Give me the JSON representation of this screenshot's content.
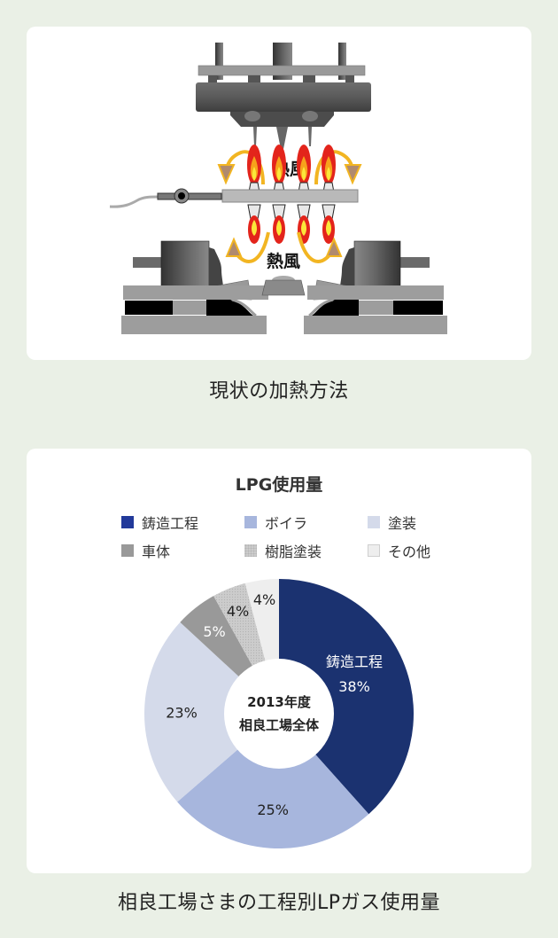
{
  "illustration": {
    "title": "現状の加熱方法",
    "hot_air_label_top": "熱風",
    "hot_air_label_bottom": "熱風",
    "burner_count": 4
  },
  "chart_caption": "相良工場さまの工程別LPガス使用量",
  "chart_data": {
    "type": "pie",
    "variant": "donut",
    "title": "LPG使用量",
    "center_label": [
      "2013年度",
      "相良工場全体"
    ],
    "categories": [
      "鋳造工程",
      "ボイラ",
      "塗装",
      "車体",
      "樹脂塗装",
      "その他"
    ],
    "values": [
      38,
      25,
      23,
      5,
      4,
      4
    ],
    "unit": "%",
    "colors": [
      "#1b3270",
      "#a7b6dd",
      "#d4daea",
      "#999999",
      "#cccccc",
      "#eeeeee"
    ],
    "data_labels": [
      "鋳造工程 38%",
      "25%",
      "23%",
      "5%",
      "4%",
      "4%"
    ],
    "legend": {
      "position": "top",
      "items": [
        {
          "label": "鋳造工程",
          "color": "#22399a"
        },
        {
          "label": "ボイラ",
          "color": "#a7b6dd"
        },
        {
          "label": "塗装",
          "color": "#d4daea"
        },
        {
          "label": "車体",
          "color": "#999999"
        },
        {
          "label": "樹脂塗装",
          "color": "#cccccc"
        },
        {
          "label": "その他",
          "color": "#eeeeee"
        }
      ]
    }
  }
}
